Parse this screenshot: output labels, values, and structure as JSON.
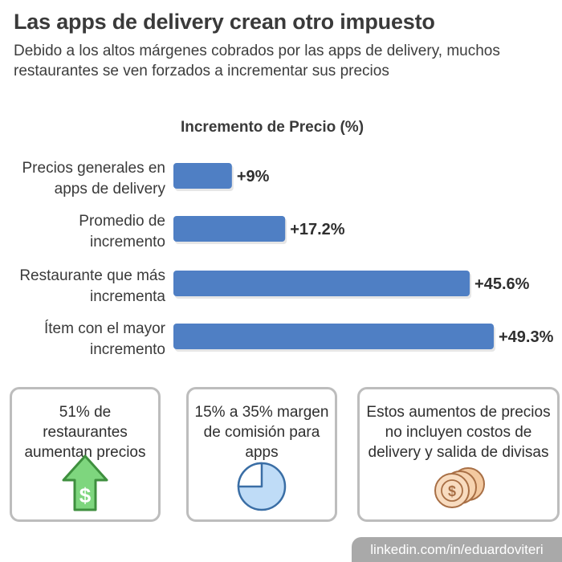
{
  "header": {
    "title": "Las apps de delivery crean otro impuesto",
    "subtitle": "Debido a los altos márgenes cobrados por las apps de delivery, muchos restaurantes se ven forzados a incrementar sus precios"
  },
  "chart_data": {
    "type": "bar",
    "orientation": "horizontal",
    "title": "Incremento de Precio (%)",
    "categories": [
      [
        "Precios generales en",
        "apps de delivery"
      ],
      [
        "Promedio de",
        "incremento"
      ],
      [
        "Restaurante que más",
        "incrementa"
      ],
      [
        "Ítem con el mayor",
        "incremento"
      ]
    ],
    "values": [
      9,
      17.2,
      45.6,
      49.3
    ],
    "value_labels": [
      "+9%",
      "+17.2%",
      "+45.6%",
      "+49.3%"
    ],
    "xlim": [
      0,
      49.3
    ],
    "bar_color": "#4f7fc4",
    "grid": false
  },
  "info_boxes": [
    {
      "text": "51% de restaurantes aumentan precios",
      "icon": "dollar-up-arrow-icon",
      "color": "#7ed67e"
    },
    {
      "text": "15% a 35% margen de comisión para apps",
      "icon": "pie-chart-icon",
      "color": "#bfdcf7"
    },
    {
      "text": "Estos aumentos de precios no incluyen costos de delivery y salida de divisas",
      "icon": "coins-icon",
      "color": "#f3c9a0"
    }
  ],
  "footer": {
    "text": "linkedin.com/in/eduardoviteri"
  }
}
